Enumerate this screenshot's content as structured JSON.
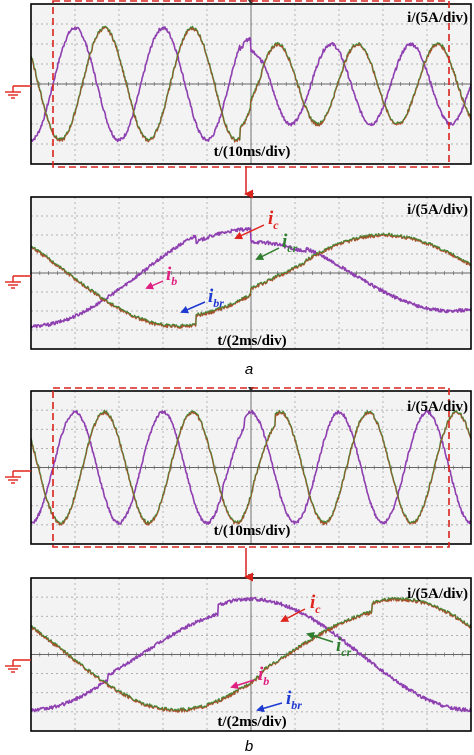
{
  "figure": {
    "subfigure_labels": [
      "a",
      "b"
    ],
    "colors": {
      "phase_b": "#8e3fb0",
      "phase_c": "#3f8a33",
      "reference": "#e0312a",
      "zoom_box": "#d9231d",
      "ann_b": "#e02080",
      "ann_br": "#1e3ad0",
      "ann_c": "#e0231c",
      "ann_cr": "#2f7d2f"
    }
  },
  "chart_data": [
    {
      "id": "a_overview",
      "type": "line",
      "ylabel": "i/(5A/div)",
      "xlabel": "t/(10ms/div)",
      "xlim": [
        -50,
        50
      ],
      "ylim": [
        -4,
        4
      ],
      "grid": true,
      "highlight_window": [
        -4.5,
        4.5
      ],
      "series": [
        {
          "key": "b",
          "color": "#8e3fb0",
          "amplitude_div": [
            2.8,
            2.0
          ],
          "freq_hz": [
            50,
            55
          ],
          "phase_deg": 90,
          "disturbance_ms": 0
        },
        {
          "key": "c",
          "color": "#3f8a33",
          "amplitude_div": [
            2.8,
            2.0
          ],
          "freq_hz": [
            50,
            55
          ],
          "phase_deg": -30,
          "disturbance_ms": 0
        }
      ]
    },
    {
      "id": "a_zoom",
      "type": "line",
      "ylabel": "i/(5A/div)",
      "xlabel": "t/(2ms/div)",
      "xlim": [
        -10,
        10
      ],
      "ylim": [
        -4,
        4
      ],
      "grid": true,
      "series": [
        {
          "key": "b",
          "color": "#8e3fb0",
          "amplitude_div": [
            2.8,
            2.0
          ],
          "freq_hz": [
            50,
            55
          ],
          "phase_deg": 90,
          "disturbance_ms": 0
        },
        {
          "key": "c",
          "color": "#3f8a33",
          "amplitude_div": [
            2.8,
            2.0
          ],
          "freq_hz": [
            50,
            55
          ],
          "phase_deg": -30,
          "disturbance_ms": 0
        }
      ],
      "annotations": [
        {
          "main": "i",
          "sub": "c",
          "color": "#e0231c"
        },
        {
          "main": "i",
          "sub": "cr",
          "color": "#2f7d2f"
        },
        {
          "main": "i",
          "sub": "b",
          "color": "#e02080"
        },
        {
          "main": "i",
          "sub": "br",
          "color": "#1e3ad0"
        }
      ]
    },
    {
      "id": "b_overview",
      "type": "line",
      "ylabel": "i/(5A/div)",
      "xlabel": "t/(10ms/div)",
      "xlim": [
        -50,
        50
      ],
      "ylim": [
        -4,
        4
      ],
      "grid": true,
      "highlight_window": [
        -4.5,
        4.5
      ],
      "series": [
        {
          "key": "b",
          "color": "#8e3fb0",
          "amplitude_div": [
            2.9,
            2.9
          ],
          "freq_hz": [
            50,
            50
          ],
          "phase_deg": 90,
          "disturbance_ms": -4
        },
        {
          "key": "c",
          "color": "#3f8a33",
          "amplitude_div": [
            2.9,
            2.9
          ],
          "freq_hz": [
            50,
            50
          ],
          "phase_deg": -30,
          "disturbance_ms": 3
        }
      ]
    },
    {
      "id": "b_zoom",
      "type": "line",
      "ylabel": "i/(5A/div)",
      "xlabel": "t/(2ms/div)",
      "xlim": [
        -10,
        10
      ],
      "ylim": [
        -4,
        4
      ],
      "grid": true,
      "series": [
        {
          "key": "b",
          "color": "#8e3fb0",
          "amplitude_div": [
            2.9,
            2.9
          ],
          "freq_hz": [
            50,
            50
          ],
          "phase_deg": 90,
          "disturbance_ms": -4
        },
        {
          "key": "c",
          "color": "#3f8a33",
          "amplitude_div": [
            2.9,
            2.9
          ],
          "freq_hz": [
            50,
            50
          ],
          "phase_deg": -30,
          "disturbance_ms": 3
        }
      ],
      "annotations": [
        {
          "main": "i",
          "sub": "c",
          "color": "#e0231c"
        },
        {
          "main": "i",
          "sub": "cr",
          "color": "#2f7d2f"
        },
        {
          "main": "i",
          "sub": "b",
          "color": "#e02080"
        },
        {
          "main": "i",
          "sub": "br",
          "color": "#1e3ad0"
        }
      ]
    }
  ]
}
